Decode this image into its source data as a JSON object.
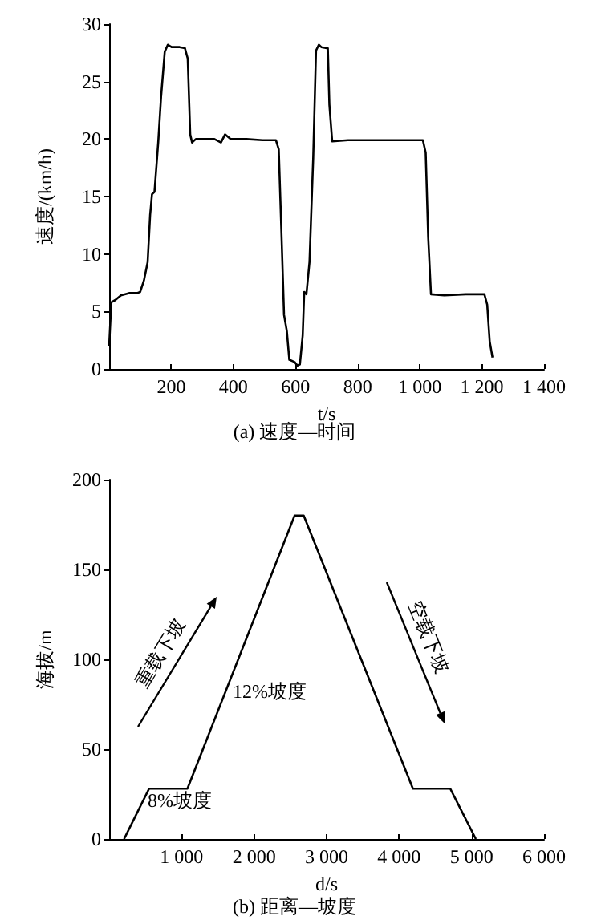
{
  "chart_data": [
    {
      "type": "line",
      "title": "(a) 速度—时间",
      "xlabel": "t/s",
      "ylabel": "速度/(km/h)",
      "xlim": [
        0,
        1400
      ],
      "xticks": [
        200,
        400,
        600,
        800,
        {
          "value": 1000,
          "label": "1 000"
        },
        {
          "value": 1200,
          "label": "1 200"
        },
        {
          "value": 1400,
          "label": "1 400"
        }
      ],
      "ylim": [
        0,
        30
      ],
      "yticks": [
        0,
        5,
        10,
        15,
        20,
        25,
        30
      ],
      "grid": false,
      "marker": "none",
      "line_style": "solid",
      "series": [
        {
          "color": "#000000",
          "x": [
            0,
            7,
            20,
            38,
            64,
            90,
            100,
            112,
            124,
            132,
            138,
            146,
            158,
            167,
            179,
            189,
            201,
            227,
            244,
            253,
            261,
            267,
            279,
            305,
            339,
            360,
            373,
            391,
            442,
            494,
            537,
            546,
            554,
            563,
            572,
            580,
            597,
            606,
            614,
            623,
            628,
            635,
            645,
            657,
            666,
            675,
            683,
            704,
            709,
            718,
            769,
            855,
            941,
            1010,
            1019,
            1027,
            1036,
            1079,
            1148,
            1208,
            1217,
            1225,
            1234
          ],
          "values": [
            2.0,
            5.8,
            6.0,
            6.4,
            6.6,
            6.6,
            6.7,
            7.7,
            9.3,
            13.4,
            15.2,
            15.4,
            19.7,
            23.6,
            27.6,
            28.2,
            28.0,
            28.0,
            27.9,
            27.0,
            20.4,
            19.7,
            20.0,
            20.0,
            20.0,
            19.7,
            20.4,
            20.0,
            20.0,
            19.9,
            19.9,
            19.1,
            12.4,
            4.7,
            3.3,
            0.8,
            0.6,
            0.3,
            0.4,
            2.9,
            6.7,
            6.5,
            9.3,
            18.4,
            27.7,
            28.2,
            28.0,
            27.9,
            23.0,
            19.8,
            19.9,
            19.9,
            19.9,
            19.9,
            18.8,
            11.5,
            6.5,
            6.4,
            6.5,
            6.5,
            5.6,
            2.4,
            1.0
          ]
        }
      ]
    },
    {
      "type": "line",
      "title": "(b) 距离—坡度",
      "xlabel": "d/s",
      "ylabel": "海拔/m",
      "xlim": [
        0,
        6000
      ],
      "xticks": [
        {
          "value": 1000,
          "label": "1 000"
        },
        {
          "value": 2000,
          "label": "2 000"
        },
        {
          "value": 3000,
          "label": "3 000"
        },
        {
          "value": 4000,
          "label": "4 000"
        },
        {
          "value": 5000,
          "label": "5 000"
        },
        {
          "value": 6000,
          "label": "6 000"
        }
      ],
      "ylim": [
        0,
        200
      ],
      "yticks": [
        0,
        50,
        100,
        150,
        200
      ],
      "grid": false,
      "marker": "none",
      "line_style": "solid",
      "series": [
        {
          "color": "#000000",
          "x": [
            206,
            551,
            1080,
            2559,
            2684,
            4191,
            4706,
            5059
          ],
          "values": [
            0,
            28,
            28,
            180,
            180,
            28,
            28,
            0
          ]
        }
      ],
      "annotations": [
        "重载下坡",
        "空载下坡",
        "12%坡度",
        "8%坡度"
      ]
    }
  ]
}
